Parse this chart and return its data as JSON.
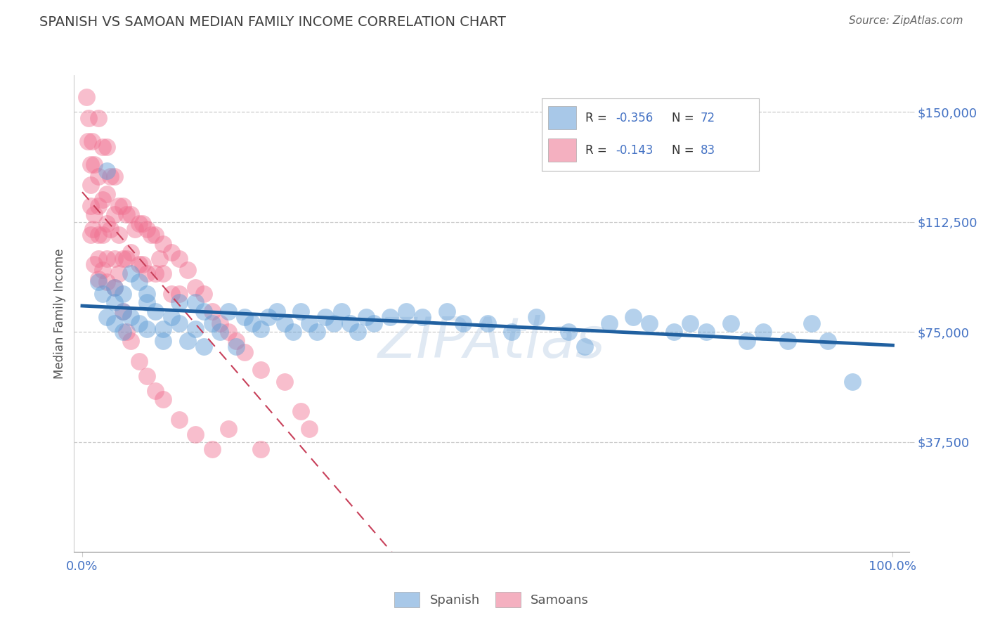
{
  "title": "SPANISH VS SAMOAN MEDIAN FAMILY INCOME CORRELATION CHART",
  "source": "Source: ZipAtlas.com",
  "ylabel": "Median Family Income",
  "ytick_vals": [
    37500,
    75000,
    112500,
    150000
  ],
  "ytick_labels": [
    "$37,500",
    "$75,000",
    "$112,500",
    "$150,000"
  ],
  "ylim_low": 0,
  "ylim_high": 162500,
  "xlim_low": -0.01,
  "xlim_high": 1.02,
  "blue_scatter": "#5b9bd5",
  "pink_scatter": "#f07090",
  "blue_legend_box": "#a8c8e8",
  "pink_legend_box": "#f4b0c0",
  "trendline_blue_color": "#2060a0",
  "trendline_pink_color": "#c8405a",
  "axis_color": "#4472c4",
  "title_color": "#404040",
  "source_color": "#666666",
  "grid_color": "#cccccc",
  "bottom_legend_spanish": "Spanish",
  "bottom_legend_samoans": "Samoans",
  "spanish_x": [
    0.02,
    0.025,
    0.03,
    0.03,
    0.04,
    0.04,
    0.04,
    0.05,
    0.05,
    0.05,
    0.06,
    0.06,
    0.07,
    0.07,
    0.08,
    0.08,
    0.08,
    0.09,
    0.1,
    0.1,
    0.11,
    0.12,
    0.12,
    0.13,
    0.14,
    0.14,
    0.15,
    0.15,
    0.16,
    0.17,
    0.18,
    0.19,
    0.2,
    0.21,
    0.22,
    0.23,
    0.24,
    0.25,
    0.26,
    0.27,
    0.28,
    0.29,
    0.3,
    0.31,
    0.32,
    0.33,
    0.34,
    0.35,
    0.36,
    0.38,
    0.4,
    0.42,
    0.45,
    0.47,
    0.5,
    0.53,
    0.56,
    0.6,
    0.62,
    0.65,
    0.68,
    0.7,
    0.73,
    0.75,
    0.77,
    0.8,
    0.82,
    0.84,
    0.87,
    0.9,
    0.92,
    0.95
  ],
  "spanish_y": [
    92000,
    88000,
    130000,
    80000,
    85000,
    78000,
    90000,
    88000,
    75000,
    82000,
    95000,
    80000,
    78000,
    92000,
    85000,
    76000,
    88000,
    82000,
    76000,
    72000,
    80000,
    85000,
    78000,
    72000,
    85000,
    76000,
    82000,
    70000,
    78000,
    75000,
    82000,
    70000,
    80000,
    78000,
    76000,
    80000,
    82000,
    78000,
    75000,
    82000,
    78000,
    75000,
    80000,
    78000,
    82000,
    78000,
    75000,
    80000,
    78000,
    80000,
    82000,
    80000,
    82000,
    78000,
    78000,
    75000,
    80000,
    75000,
    70000,
    78000,
    80000,
    78000,
    75000,
    78000,
    75000,
    78000,
    72000,
    75000,
    72000,
    78000,
    72000,
    58000
  ],
  "samoan_x": [
    0.005,
    0.007,
    0.008,
    0.01,
    0.01,
    0.01,
    0.01,
    0.012,
    0.013,
    0.015,
    0.015,
    0.015,
    0.02,
    0.02,
    0.02,
    0.02,
    0.02,
    0.02,
    0.025,
    0.025,
    0.025,
    0.025,
    0.03,
    0.03,
    0.03,
    0.03,
    0.03,
    0.035,
    0.035,
    0.04,
    0.04,
    0.04,
    0.04,
    0.045,
    0.045,
    0.045,
    0.05,
    0.05,
    0.055,
    0.055,
    0.06,
    0.06,
    0.065,
    0.07,
    0.07,
    0.075,
    0.075,
    0.08,
    0.08,
    0.085,
    0.09,
    0.09,
    0.095,
    0.1,
    0.1,
    0.11,
    0.11,
    0.12,
    0.12,
    0.13,
    0.14,
    0.15,
    0.16,
    0.17,
    0.18,
    0.19,
    0.2,
    0.22,
    0.25,
    0.27,
    0.05,
    0.055,
    0.06,
    0.07,
    0.08,
    0.09,
    0.1,
    0.12,
    0.14,
    0.16,
    0.18,
    0.22,
    0.28
  ],
  "samoan_y": [
    155000,
    140000,
    148000,
    132000,
    118000,
    108000,
    125000,
    140000,
    110000,
    132000,
    115000,
    98000,
    148000,
    128000,
    118000,
    108000,
    100000,
    93000,
    138000,
    120000,
    108000,
    96000,
    138000,
    122000,
    112000,
    100000,
    92000,
    128000,
    110000,
    128000,
    115000,
    100000,
    90000,
    118000,
    108000,
    95000,
    118000,
    100000,
    115000,
    100000,
    115000,
    102000,
    110000,
    112000,
    98000,
    112000,
    98000,
    110000,
    95000,
    108000,
    108000,
    95000,
    100000,
    105000,
    95000,
    102000,
    88000,
    100000,
    88000,
    96000,
    90000,
    88000,
    82000,
    78000,
    75000,
    72000,
    68000,
    62000,
    58000,
    48000,
    82000,
    75000,
    72000,
    65000,
    60000,
    55000,
    52000,
    45000,
    40000,
    35000,
    42000,
    35000,
    42000
  ]
}
